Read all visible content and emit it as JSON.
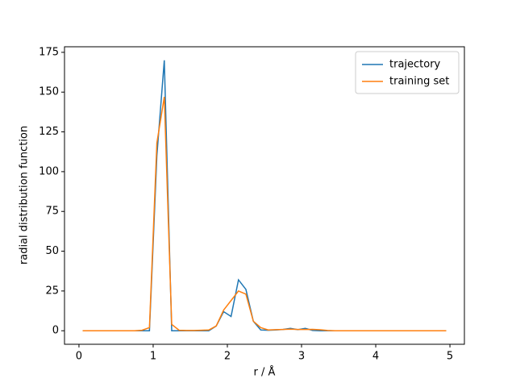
{
  "chart_data": {
    "type": "line",
    "x_label": "r / Å",
    "y_label": "radial distribution function",
    "x": [
      0.05,
      0.15,
      0.25,
      0.35,
      0.45,
      0.55,
      0.65,
      0.75,
      0.85,
      0.95,
      1.05,
      1.15,
      1.25,
      1.35,
      1.45,
      1.55,
      1.65,
      1.75,
      1.85,
      1.95,
      2.05,
      2.15,
      2.25,
      2.35,
      2.45,
      2.55,
      2.65,
      2.75,
      2.85,
      2.95,
      3.05,
      3.15,
      3.25,
      3.35,
      3.45,
      3.55,
      3.65,
      3.75,
      3.85,
      3.95,
      4.05,
      4.15,
      4.25,
      4.35,
      4.45,
      4.55,
      4.65,
      4.75,
      4.85,
      4.95
    ],
    "series": [
      {
        "name": "trajectory",
        "color": "#1f77b4",
        "values": [
          0,
          0,
          0,
          0,
          0,
          0,
          0,
          0,
          0,
          0,
          110,
          170,
          0,
          0,
          0,
          0,
          0,
          0,
          3,
          12,
          9,
          32,
          26,
          6,
          0.5,
          0.3,
          0.5,
          0.8,
          1.5,
          0.7,
          1.5,
          0.2,
          0,
          0,
          0,
          0,
          0,
          0,
          0,
          0,
          0,
          0,
          0,
          0,
          0,
          0,
          0,
          0,
          0,
          0
        ]
      },
      {
        "name": "training set",
        "color": "#ff7f0e",
        "values": [
          0,
          0,
          0,
          0,
          0,
          0,
          0,
          0,
          0.3,
          2,
          118,
          147,
          4,
          0.3,
          0.2,
          0.2,
          0.3,
          0.5,
          3,
          13,
          19,
          25,
          23,
          6,
          2,
          0.5,
          0.7,
          0.8,
          1,
          0.8,
          0.8,
          0.9,
          0.6,
          0.2,
          0,
          0,
          0,
          0,
          0,
          0,
          0,
          0,
          0,
          0,
          0,
          0,
          0,
          0,
          0,
          0
        ]
      }
    ],
    "xlim": [
      -0.195,
      5.195
    ],
    "xticks": [
      0,
      1,
      2,
      3,
      4,
      5
    ],
    "ylim": [
      -8.5,
      178.5
    ],
    "yticks": [
      0,
      25,
      50,
      75,
      100,
      125,
      150,
      175
    ],
    "legend": "upper right"
  }
}
